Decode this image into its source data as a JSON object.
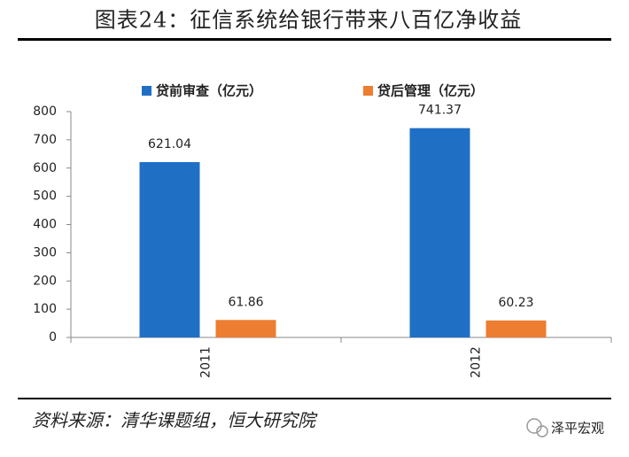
{
  "chart_data": {
    "type": "bar",
    "title": "图表24：征信系统给银行带来八百亿净收益",
    "categories": [
      "2011",
      "2012"
    ],
    "series": [
      {
        "name": "贷前审查（亿元）",
        "color": "#1f6fc5",
        "values": [
          621.04,
          741.37
        ]
      },
      {
        "name": "贷后管理（亿元）",
        "color": "#ed7d31",
        "values": [
          61.86,
          60.23
        ]
      }
    ],
    "ylim": [
      0,
      800
    ],
    "yticks": [
      0,
      100,
      200,
      300,
      400,
      500,
      600,
      700,
      800
    ],
    "legend": "top",
    "source": "资料来源：清华课题组，恒大研究院"
  },
  "watermark": "泽平宏观"
}
